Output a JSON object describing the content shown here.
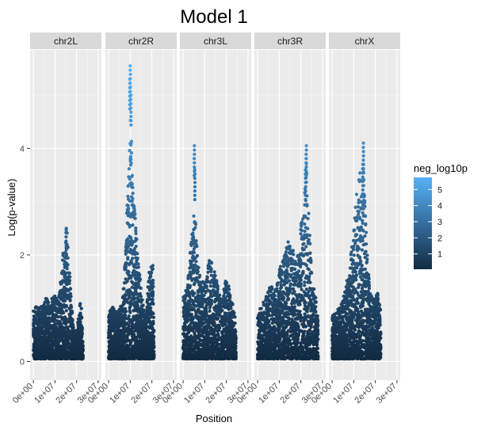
{
  "chart_data": {
    "type": "scatter",
    "title": "Model 1",
    "xlabel": "Position",
    "ylabel": "Log(p-value)",
    "facets": [
      "chr2L",
      "chr2R",
      "chr3L",
      "chr3R",
      "chrX"
    ],
    "xlim": [
      0,
      30000000
    ],
    "ylim": [
      0,
      5.6
    ],
    "x_ticks": [
      0,
      10000000,
      20000000,
      30000000
    ],
    "x_tick_labels": [
      "0e+00",
      "1e+07",
      "2e+07",
      "3e+07"
    ],
    "y_ticks": [
      0,
      2,
      4
    ],
    "y_tick_labels": [
      "0",
      "2",
      "4"
    ],
    "grid": true,
    "legend": {
      "title": "neg_log10p",
      "position": "right",
      "ticks": [
        1,
        2,
        3,
        4,
        5
      ],
      "tick_labels": [
        "1",
        "2",
        "3",
        "4",
        "5"
      ],
      "color_low": "#132B43",
      "color_high": "#56B1F7"
    },
    "panel_background": "#EBEBEB",
    "strip_background": "#D9D9D9",
    "series": [
      {
        "facet": "chr2L",
        "x_range": [
          0,
          23000000
        ],
        "profile": [
          [
            0,
            0.9
          ],
          [
            1500000,
            1.0
          ],
          [
            3000000,
            0.95
          ],
          [
            4500000,
            1.05
          ],
          [
            6000000,
            1.15
          ],
          [
            7500000,
            1.1
          ],
          [
            9000000,
            1.2
          ],
          [
            10500000,
            1.25
          ],
          [
            11500000,
            1.1
          ],
          [
            12500000,
            1.5
          ],
          [
            13500000,
            1.9
          ],
          [
            14500000,
            2.3
          ],
          [
            15500000,
            2.5
          ],
          [
            16500000,
            1.8
          ],
          [
            17500000,
            1.2
          ],
          [
            18500000,
            0.6
          ],
          [
            20000000,
            0.45
          ],
          [
            21000000,
            0.9
          ],
          [
            22000000,
            1.15
          ],
          [
            23000000,
            0.3
          ]
        ],
        "peaks": [
          [
            15200000,
            2.5
          ]
        ]
      },
      {
        "facet": "chr2R",
        "x_range": [
          0,
          21000000
        ],
        "profile": [
          [
            0,
            0.85
          ],
          [
            1500000,
            1.0
          ],
          [
            3000000,
            0.9
          ],
          [
            4500000,
            0.95
          ],
          [
            6000000,
            1.0
          ],
          [
            7000000,
            1.4
          ],
          [
            8000000,
            2.3
          ],
          [
            8800000,
            3.2
          ],
          [
            9500000,
            4.0
          ],
          [
            10200000,
            4.6
          ],
          [
            10800000,
            3.8
          ],
          [
            11500000,
            3.0
          ],
          [
            12500000,
            2.6
          ],
          [
            13500000,
            1.9
          ],
          [
            14500000,
            1.6
          ],
          [
            15500000,
            1.2
          ],
          [
            16500000,
            0.8
          ],
          [
            17500000,
            0.9
          ],
          [
            18500000,
            1.6
          ],
          [
            19500000,
            1.7
          ],
          [
            20500000,
            1.9
          ],
          [
            21000000,
            0.6
          ]
        ],
        "peaks": [
          [
            10000000,
            5.55
          ],
          [
            9800000,
            5.3
          ],
          [
            10300000,
            5.0
          ]
        ]
      },
      {
        "facet": "chr3L",
        "x_range": [
          0,
          24500000
        ],
        "profile": [
          [
            0,
            1.2
          ],
          [
            1500000,
            1.3
          ],
          [
            3000000,
            1.9
          ],
          [
            4500000,
            2.6
          ],
          [
            5500000,
            2.8
          ],
          [
            6500000,
            2.0
          ],
          [
            7500000,
            1.6
          ],
          [
            9000000,
            1.5
          ],
          [
            10500000,
            1.4
          ],
          [
            12000000,
            1.9
          ],
          [
            13500000,
            1.8
          ],
          [
            15000000,
            1.6
          ],
          [
            16500000,
            1.3
          ],
          [
            18000000,
            1.1
          ],
          [
            19500000,
            1.5
          ],
          [
            21000000,
            1.4
          ],
          [
            22500000,
            1.1
          ],
          [
            24000000,
            0.9
          ],
          [
            24500000,
            0.5
          ]
        ],
        "peaks": [
          [
            5200000,
            4.05
          ],
          [
            5400000,
            3.6
          ]
        ]
      },
      {
        "facet": "chr3R",
        "x_range": [
          0,
          28000000
        ],
        "profile": [
          [
            0,
            0.9
          ],
          [
            2000000,
            1.0
          ],
          [
            4000000,
            1.2
          ],
          [
            6000000,
            1.4
          ],
          [
            8000000,
            1.3
          ],
          [
            10000000,
            1.7
          ],
          [
            12000000,
            1.9
          ],
          [
            14000000,
            2.2
          ],
          [
            16000000,
            2.1
          ],
          [
            18000000,
            1.8
          ],
          [
            20000000,
            2.5
          ],
          [
            21500000,
            3.0
          ],
          [
            22500000,
            3.8
          ],
          [
            23500000,
            2.9
          ],
          [
            25000000,
            1.6
          ],
          [
            26500000,
            1.3
          ],
          [
            28000000,
            0.7
          ]
        ],
        "peaks": [
          [
            22500000,
            4.05
          ],
          [
            22200000,
            3.6
          ]
        ]
      },
      {
        "facet": "chrX",
        "x_range": [
          0,
          22500000
        ],
        "profile": [
          [
            0,
            0.8
          ],
          [
            2000000,
            0.9
          ],
          [
            4000000,
            1.0
          ],
          [
            6000000,
            1.3
          ],
          [
            8000000,
            1.7
          ],
          [
            9500000,
            2.3
          ],
          [
            11000000,
            3.0
          ],
          [
            12500000,
            3.6
          ],
          [
            13500000,
            3.4
          ],
          [
            14500000,
            3.7
          ],
          [
            15500000,
            2.6
          ],
          [
            16500000,
            1.8
          ],
          [
            18000000,
            1.3
          ],
          [
            19500000,
            1.1
          ],
          [
            21000000,
            1.3
          ],
          [
            22500000,
            0.9
          ]
        ],
        "peaks": [
          [
            14500000,
            4.1
          ],
          [
            14200000,
            3.7
          ]
        ]
      }
    ]
  }
}
